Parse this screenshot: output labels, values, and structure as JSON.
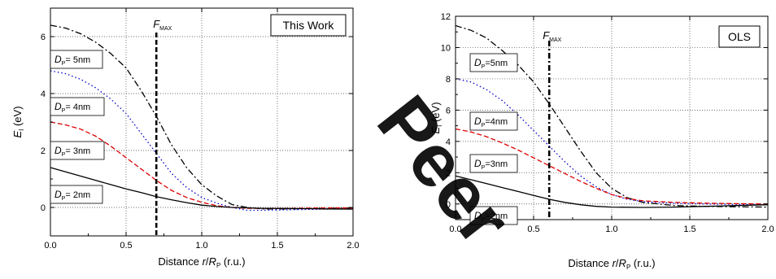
{
  "watermark": {
    "text": "Peer",
    "color": "#00b0f0"
  },
  "chart_data": [
    {
      "type": "line",
      "title_box": "This Work",
      "xlabel": {
        "main": "Distance ",
        "var": "r",
        "slash": "/",
        "var2": "R",
        "sub": "P",
        "unit": " (r.u.)"
      },
      "ylabel": {
        "main": "E",
        "sub": "I",
        "unit": " (eV)"
      },
      "xlim": [
        0,
        2.0
      ],
      "ylim": [
        -1,
        7
      ],
      "xticks": [
        0.0,
        0.5,
        1.0,
        1.5,
        2.0
      ],
      "xtick_labels": [
        "0.0",
        "0.5",
        "1.0",
        "1.5",
        "2.0"
      ],
      "yticks": [
        0,
        2,
        4,
        6
      ],
      "ytick_labels": [
        "0",
        "2",
        "4",
        "6"
      ],
      "grid": true,
      "fmax": {
        "x": 0.7,
        "label_main": "F",
        "label_sub": "MAX"
      },
      "series": [
        {
          "name": "5nm",
          "color": "#000000",
          "dash": "dashdot",
          "x": [
            0,
            0.1,
            0.2,
            0.3,
            0.4,
            0.5,
            0.6,
            0.7,
            0.8,
            0.9,
            1.0,
            1.1,
            1.2,
            1.3,
            1.4,
            1.6,
            1.8,
            2.0
          ],
          "y": [
            6.4,
            6.3,
            6.1,
            5.8,
            5.4,
            4.9,
            4.1,
            3.2,
            2.2,
            1.4,
            0.8,
            0.4,
            0.1,
            0.0,
            -0.05,
            -0.05,
            -0.03,
            -0.02
          ]
        },
        {
          "name": "4nm",
          "color": "#0000cc",
          "dash": "dotted",
          "x": [
            0,
            0.1,
            0.2,
            0.3,
            0.4,
            0.5,
            0.6,
            0.7,
            0.8,
            0.9,
            1.0,
            1.1,
            1.2,
            1.3,
            1.4,
            1.6,
            1.8,
            2.0
          ],
          "y": [
            4.8,
            4.7,
            4.5,
            4.2,
            3.8,
            3.3,
            2.6,
            1.9,
            1.2,
            0.7,
            0.35,
            0.15,
            0.0,
            -0.1,
            -0.1,
            -0.08,
            -0.06,
            -0.05
          ]
        },
        {
          "name": "3nm",
          "color": "#dd0000",
          "dash": "dashed",
          "x": [
            0,
            0.1,
            0.2,
            0.3,
            0.4,
            0.5,
            0.6,
            0.7,
            0.8,
            0.9,
            1.0,
            1.1,
            1.2,
            1.3,
            1.4,
            1.6,
            1.8,
            2.0
          ],
          "y": [
            3.0,
            2.9,
            2.75,
            2.5,
            2.15,
            1.75,
            1.35,
            0.95,
            0.6,
            0.35,
            0.18,
            0.06,
            0.0,
            -0.03,
            -0.03,
            -0.03,
            -0.02,
            -0.02
          ]
        },
        {
          "name": "2nm",
          "color": "#000000",
          "dash": "solid",
          "x": [
            0,
            0.1,
            0.2,
            0.3,
            0.4,
            0.5,
            0.6,
            0.7,
            0.8,
            0.9,
            1.0,
            1.1,
            1.2,
            1.4,
            1.6,
            1.8,
            2.0
          ],
          "y": [
            1.4,
            1.25,
            1.1,
            0.95,
            0.8,
            0.65,
            0.52,
            0.38,
            0.27,
            0.17,
            0.08,
            0.03,
            0.0,
            -0.03,
            -0.04,
            -0.05,
            -0.06
          ]
        }
      ],
      "labels": [
        {
          "main": "D",
          "sub": "P",
          "text": "= 5nm"
        },
        {
          "main": "D",
          "sub": "P",
          "text": "= 4nm"
        },
        {
          "main": "D",
          "sub": "P",
          "text": "= 3nm"
        },
        {
          "main": "D",
          "sub": "P",
          "text": "= 2nm"
        }
      ]
    },
    {
      "type": "line",
      "title_box": "OLS",
      "xlabel": {
        "main": "Distance ",
        "var": "r",
        "slash": "/",
        "var2": "R",
        "sub": "P",
        "unit": " (r.u.)"
      },
      "ylabel": {
        "main": "E",
        "sub": "I",
        "unit": " (eV)"
      },
      "xlim": [
        0,
        2.0
      ],
      "ylim": [
        -1,
        12
      ],
      "xticks": [
        0.0,
        0.5,
        1.0,
        1.5,
        2.0
      ],
      "xtick_labels": [
        "0.0",
        "0.5",
        "1.0",
        "1.5",
        "2.0"
      ],
      "yticks": [
        0,
        2,
        4,
        6,
        8,
        10,
        12
      ],
      "ytick_labels": [
        "0",
        "2",
        "4",
        "6",
        "8",
        "10",
        "12"
      ],
      "grid": true,
      "fmax": {
        "x": 0.6,
        "label_main": "F",
        "label_sub": "MAX"
      },
      "series": [
        {
          "name": "5nm",
          "color": "#000000",
          "dash": "dashdot",
          "x": [
            0,
            0.1,
            0.2,
            0.3,
            0.4,
            0.5,
            0.6,
            0.7,
            0.8,
            0.9,
            1.0,
            1.1,
            1.2,
            1.4,
            1.6,
            1.8,
            2.0
          ],
          "y": [
            11.4,
            11.1,
            10.6,
            9.8,
            8.9,
            7.8,
            6.4,
            4.9,
            3.4,
            2.0,
            1.0,
            0.4,
            0.1,
            -0.1,
            -0.15,
            -0.18,
            -0.2
          ]
        },
        {
          "name": "4nm",
          "color": "#0000cc",
          "dash": "dotted",
          "x": [
            0,
            0.1,
            0.2,
            0.3,
            0.4,
            0.5,
            0.6,
            0.7,
            0.8,
            0.9,
            1.0,
            1.1,
            1.2,
            1.4,
            1.6,
            1.8,
            2.0
          ],
          "y": [
            8.0,
            7.8,
            7.3,
            6.6,
            5.7,
            4.7,
            3.7,
            2.7,
            1.8,
            1.1,
            0.6,
            0.3,
            0.15,
            0.05,
            0.0,
            -0.02,
            -0.05
          ]
        },
        {
          "name": "3nm",
          "color": "#dd0000",
          "dash": "dashed",
          "x": [
            0,
            0.1,
            0.2,
            0.3,
            0.4,
            0.5,
            0.6,
            0.7,
            0.8,
            0.9,
            1.0,
            1.1,
            1.2,
            1.4,
            1.6,
            1.8,
            2.0
          ],
          "y": [
            4.8,
            4.6,
            4.3,
            3.9,
            3.45,
            2.95,
            2.45,
            1.95,
            1.45,
            1.0,
            0.6,
            0.35,
            0.2,
            0.1,
            0.05,
            0.02,
            0.0
          ]
        },
        {
          "name": "2nm",
          "color": "#000000",
          "dash": "solid",
          "x": [
            0,
            0.1,
            0.2,
            0.3,
            0.4,
            0.5,
            0.6,
            0.7,
            0.8,
            0.9,
            1.0,
            1.2,
            1.4,
            1.6,
            1.8,
            2.0
          ],
          "y": [
            1.8,
            1.55,
            1.3,
            1.05,
            0.8,
            0.55,
            0.3,
            0.1,
            -0.05,
            -0.15,
            -0.2,
            -0.22,
            -0.2,
            -0.15,
            -0.1,
            -0.05
          ]
        }
      ],
      "labels": [
        {
          "main": "D",
          "sub": "P",
          "text": "=5nm"
        },
        {
          "main": "D",
          "sub": "P",
          "text": "=4nm"
        },
        {
          "main": "D",
          "sub": "P",
          "text": "=3nm"
        },
        {
          "main": "D",
          "sub": "P",
          "text": "=2nm"
        }
      ]
    }
  ]
}
